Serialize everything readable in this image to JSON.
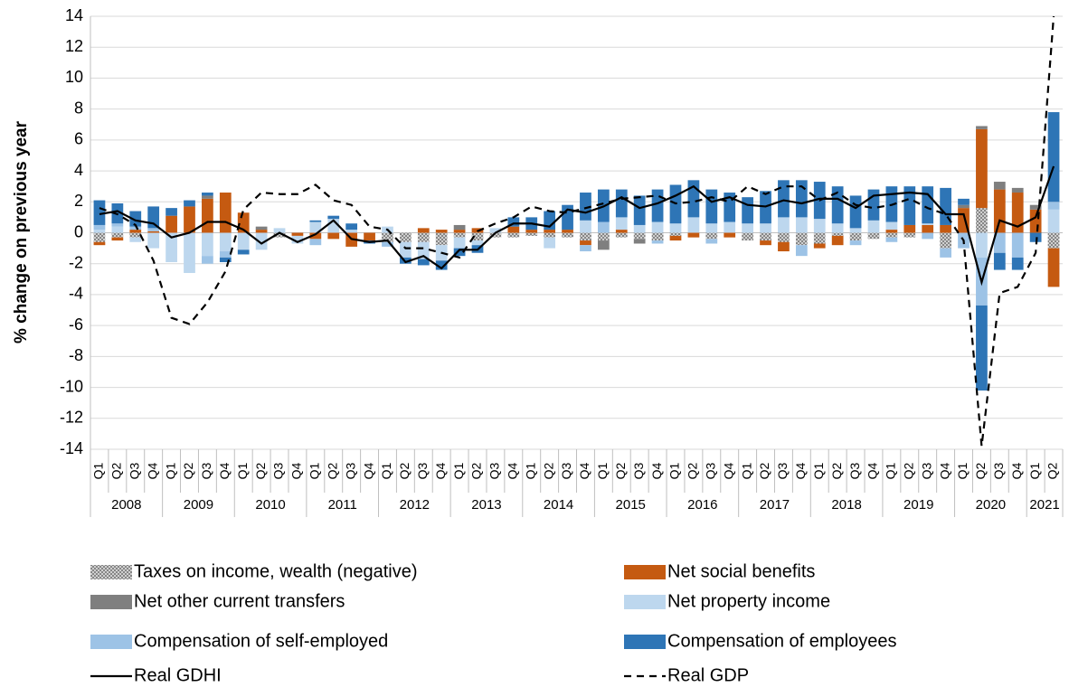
{
  "chart_data": {
    "type": "bar-line",
    "y_axis_label": "% change on previous year",
    "ylim": [
      -14,
      14
    ],
    "yticks": [
      -14,
      -12,
      -10,
      -8,
      -6,
      -4,
      -2,
      0,
      2,
      4,
      6,
      8,
      10,
      12,
      14
    ],
    "grid": true,
    "category_groups": [
      {
        "name": "2008",
        "categories": [
          "Q1",
          "Q2",
          "Q3",
          "Q4"
        ]
      },
      {
        "name": "2009",
        "categories": [
          "Q1",
          "Q2",
          "Q3",
          "Q4"
        ]
      },
      {
        "name": "2010",
        "categories": [
          "Q1",
          "Q2",
          "Q3",
          "Q4"
        ]
      },
      {
        "name": "2011",
        "categories": [
          "Q1",
          "Q2",
          "Q3",
          "Q4"
        ]
      },
      {
        "name": "2012",
        "categories": [
          "Q1",
          "Q2",
          "Q3",
          "Q4"
        ]
      },
      {
        "name": "2013",
        "categories": [
          "Q1",
          "Q2",
          "Q3",
          "Q4"
        ]
      },
      {
        "name": "2014",
        "categories": [
          "Q1",
          "Q2",
          "Q3",
          "Q4"
        ]
      },
      {
        "name": "2015",
        "categories": [
          "Q1",
          "Q2",
          "Q3",
          "Q4"
        ]
      },
      {
        "name": "2016",
        "categories": [
          "Q1",
          "Q2",
          "Q3",
          "Q4"
        ]
      },
      {
        "name": "2017",
        "categories": [
          "Q1",
          "Q2",
          "Q3",
          "Q4"
        ]
      },
      {
        "name": "2018",
        "categories": [
          "Q1",
          "Q2",
          "Q3",
          "Q4"
        ]
      },
      {
        "name": "2019",
        "categories": [
          "Q1",
          "Q2",
          "Q3",
          "Q4"
        ]
      },
      {
        "name": "2020",
        "categories": [
          "Q1",
          "Q2",
          "Q3",
          "Q4"
        ]
      },
      {
        "name": "2021",
        "categories": [
          "Q1",
          "Q2"
        ]
      }
    ],
    "series": [
      {
        "name": "Taxes on income, wealth (negative)",
        "kind": "bar",
        "color": "#a5a5a5",
        "pattern": "dots",
        "values": [
          -0.6,
          -0.3,
          -0.3,
          0,
          0,
          0,
          0,
          0,
          0,
          0,
          -0.3,
          0,
          0,
          0,
          0,
          0,
          -0.6,
          -0.6,
          -0.6,
          -0.8,
          -0.3,
          -0.5,
          -0.3,
          -0.3,
          -0.2,
          -0.3,
          -0.3,
          -0.5,
          -0.5,
          -0.3,
          -0.4,
          -0.5,
          -0.2,
          0,
          -0.4,
          0,
          -0.5,
          -0.5,
          -0.6,
          -0.8,
          -0.7,
          -0.2,
          -0.5,
          -0.4,
          -0.3,
          -0.3,
          0,
          -1.0,
          0,
          1.6,
          0,
          0,
          0,
          -1.0
        ]
      },
      {
        "name": "Net social benefits",
        "kind": "bar",
        "color": "#c55a11",
        "values": [
          -0.2,
          -0.2,
          0.2,
          0.1,
          1.1,
          1.7,
          2.2,
          2.6,
          1.3,
          0.2,
          0,
          -0.2,
          -0.4,
          -0.4,
          -0.9,
          -0.5,
          0,
          0,
          0.3,
          0.2,
          0.2,
          0.3,
          0,
          0.4,
          0.2,
          0.2,
          0.2,
          -0.3,
          0,
          0.2,
          0,
          0,
          -0.3,
          -0.3,
          0,
          -0.3,
          0,
          -0.3,
          -0.6,
          0,
          -0.3,
          -0.6,
          0,
          0,
          0.2,
          0.5,
          0.5,
          0.5,
          1.6,
          5.1,
          2.8,
          2.6,
          1.5,
          -2.5
        ]
      },
      {
        "name": "Net other current transfers",
        "kind": "bar",
        "color": "#7f7f7f",
        "values": [
          0,
          0,
          0,
          0,
          0,
          0,
          0.2,
          0,
          0,
          0.2,
          0,
          0,
          0,
          0,
          0,
          0,
          0,
          0,
          0,
          0,
          0.3,
          0,
          0,
          0,
          0,
          0,
          0,
          0,
          -0.6,
          0,
          -0.3,
          0,
          0,
          0,
          0,
          0,
          0,
          0,
          0,
          0,
          0,
          0,
          0,
          0,
          0,
          0,
          0,
          0,
          0.2,
          0.2,
          0.5,
          0.3,
          0.3,
          0
        ]
      },
      {
        "name": "Net property income",
        "kind": "bar",
        "color": "#bdd7ee",
        "values": [
          0.2,
          0.4,
          -0.3,
          -1.0,
          -1.9,
          -2.6,
          -1.5,
          -1.2,
          -1.1,
          -1.1,
          0.3,
          -0.5,
          0.7,
          0.9,
          0.2,
          0,
          0.4,
          -1.0,
          -1.1,
          -1.0,
          -0.7,
          -0.3,
          0.3,
          0,
          0,
          -0.7,
          0,
          0.8,
          0,
          0.8,
          0.5,
          0.7,
          0.6,
          1.0,
          0.6,
          0.7,
          0.6,
          0.6,
          1.0,
          1.0,
          0.9,
          0.6,
          0.3,
          0.8,
          0.5,
          0,
          0.1,
          0,
          0,
          -1.6,
          0,
          0,
          0,
          1.5
        ]
      },
      {
        "name": "Compensation of self-employed",
        "kind": "bar",
        "color": "#9dc3e6",
        "values": [
          0.3,
          0.2,
          0.2,
          0.2,
          0,
          0,
          -0.5,
          -0.4,
          0,
          0,
          0,
          0,
          -0.4,
          0,
          0,
          0,
          -0.3,
          0,
          0,
          0,
          0,
          0,
          0,
          0,
          0,
          0,
          0,
          -0.4,
          0.7,
          0,
          0,
          -0.2,
          0,
          0,
          -0.3,
          0,
          0,
          0,
          0,
          -0.7,
          0,
          0,
          -0.3,
          0,
          -0.3,
          0,
          -0.4,
          -0.6,
          -1.0,
          -3.1,
          -1.3,
          -1.6,
          0,
          0.5
        ]
      },
      {
        "name": "Compensation of employees",
        "kind": "bar",
        "color": "#2e75b6",
        "values": [
          1.6,
          1.3,
          1.0,
          1.4,
          0.5,
          0.4,
          0.2,
          -0.3,
          -0.3,
          0,
          0,
          0,
          0.1,
          0.2,
          0.4,
          -0.2,
          0,
          -0.4,
          -0.4,
          -0.6,
          -0.5,
          -0.5,
          0,
          0.6,
          0.8,
          1.2,
          1.6,
          1.8,
          2.1,
          1.8,
          1.9,
          2.1,
          2.5,
          2.4,
          2.2,
          1.9,
          1.7,
          2.1,
          2.4,
          2.4,
          2.4,
          2.4,
          2.1,
          2.0,
          2.3,
          2.5,
          2.4,
          2.4,
          0.4,
          -5.5,
          -1.1,
          -0.8,
          -0.6,
          5.8
        ]
      },
      {
        "name": "Real GDHI",
        "kind": "line",
        "color": "#000000",
        "dash": "solid",
        "values": [
          1.2,
          1.4,
          0.8,
          0.6,
          -0.3,
          0,
          0.7,
          0.7,
          0.2,
          -0.7,
          0,
          -0.6,
          -0.1,
          0.8,
          -0.4,
          -0.6,
          -0.5,
          -1.9,
          -1.5,
          -2.3,
          -1.1,
          -1.1,
          0,
          0.6,
          0.6,
          0.4,
          1.5,
          1.3,
          1.7,
          2.3,
          1.6,
          1.9,
          2.4,
          3.0,
          2.0,
          2.3,
          1.8,
          1.7,
          2.1,
          1.9,
          2.2,
          2.2,
          1.6,
          2.4,
          2.5,
          2.6,
          2.5,
          1.2,
          1.2,
          -3.2,
          0.8,
          0.4,
          1.0,
          4.3
        ]
      },
      {
        "name": "Real GDP",
        "kind": "line",
        "color": "#000000",
        "dash": "dashed",
        "values": [
          1.6,
          1.2,
          0.5,
          -1.8,
          -5.5,
          -5.9,
          -4.5,
          -2.5,
          1.5,
          2.6,
          2.5,
          2.5,
          3.1,
          2.1,
          1.8,
          0.4,
          0.2,
          -1.0,
          -1.0,
          -1.3,
          -1.6,
          0.1,
          0.6,
          1.0,
          1.7,
          1.4,
          1.3,
          1.6,
          1.9,
          2.2,
          2.3,
          2.4,
          1.9,
          2.0,
          2.3,
          2.0,
          3.0,
          2.5,
          3.0,
          3.0,
          2.1,
          2.6,
          1.8,
          1.6,
          1.8,
          2.2,
          1.6,
          1.2,
          -0.5,
          -13.8,
          -3.9,
          -3.5,
          -1.3,
          14.0
        ]
      }
    ]
  }
}
